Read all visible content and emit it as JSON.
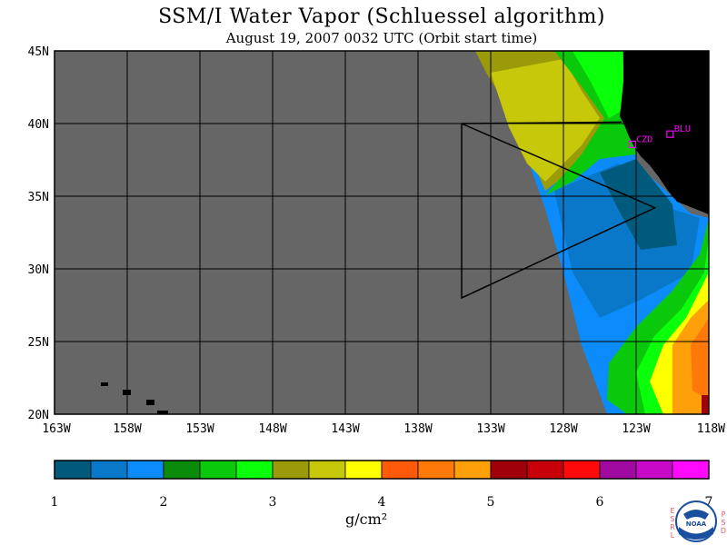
{
  "title": "SSM/I Water Vapor (Schluessel algorithm)",
  "subtitle": "August 19, 2007  0032 UTC  (Orbit start time)",
  "map": {
    "lon_range": [
      -163,
      -118
    ],
    "lat_range": [
      20,
      45
    ],
    "lat_ticks": [
      "45N",
      "40N",
      "35N",
      "30N",
      "25N",
      "20N"
    ],
    "lon_ticks": [
      "163W",
      "158W",
      "153W",
      "148W",
      "143W",
      "138W",
      "133W",
      "128W",
      "123W",
      "118W"
    ],
    "no_data_color": "#666666",
    "land_color": "#000000",
    "stations": [
      {
        "label": "CZD",
        "lon": -123.3,
        "lat": 38.6
      },
      {
        "label": "BLU",
        "lon": -120.7,
        "lat": 39.3
      }
    ],
    "station_color": "#ff00ff",
    "analysis_box": [
      {
        "lon": -135,
        "lat": 40
      },
      {
        "lon": -135,
        "lat": 28
      },
      {
        "lon": -121.7,
        "lat": 34.2
      }
    ]
  },
  "colorbar": {
    "unit": "g/cm²",
    "min": 1,
    "max": 7,
    "tick_labels": [
      "1",
      "2",
      "3",
      "4",
      "5",
      "6",
      "7"
    ],
    "colors": [
      "#005a7c",
      "#0a78c8",
      "#0b8cfa",
      "#0a8c0a",
      "#0ac80a",
      "#0aff0a",
      "#9b9b0a",
      "#c8c80a",
      "#ffff00",
      "#ff5a0a",
      "#ff780a",
      "#ffa00a",
      "#a0000a",
      "#c8000a",
      "#ff0a0a",
      "#a00aa0",
      "#c80ac8",
      "#ff0aff"
    ]
  },
  "logo": {
    "left_text": "ESRL",
    "right_text": "PSD",
    "emblem": "NOAA"
  }
}
